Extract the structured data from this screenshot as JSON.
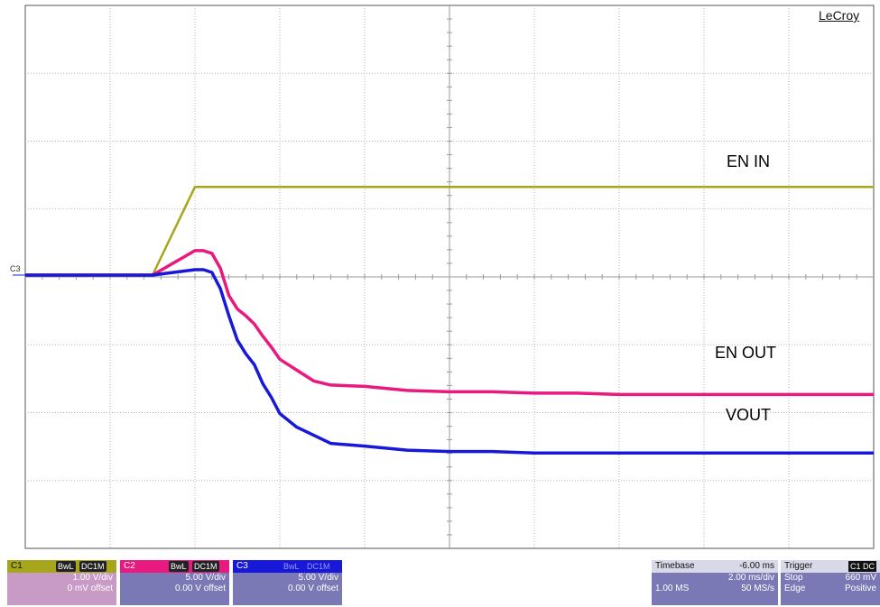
{
  "brand": "LeCroy",
  "chart_data": {
    "type": "line",
    "grid": {
      "divisions_x": 10,
      "divisions_y": 8
    },
    "x": [
      -6,
      -5,
      -4,
      -3,
      -2,
      -1.8,
      -1.6,
      -1.4,
      -1.2,
      -1.0,
      -0.8,
      -0.6,
      -0.4,
      -0.2,
      0.0,
      0.4,
      0.8,
      1.2,
      2,
      3,
      4,
      5,
      6,
      7,
      8,
      9,
      10,
      11,
      12,
      13,
      14
    ],
    "series": [
      {
        "name": "EN IN",
        "channel": "C1",
        "color": "#a6a61a",
        "values": [
          0,
          0,
          0,
          0,
          1.3,
          1.3,
          1.3,
          1.3,
          1.3,
          1.3,
          1.3,
          1.3,
          1.3,
          1.3,
          1.3,
          1.3,
          1.3,
          1.3,
          1.3,
          1.3,
          1.3,
          1.3,
          1.3,
          1.3,
          1.3,
          1.3,
          1.3,
          1.3,
          1.3,
          1.3,
          1.3
        ]
      },
      {
        "name": "EN OUT",
        "channel": "C2",
        "color": "#e8197f",
        "values": [
          0,
          0,
          0,
          0,
          1.8,
          1.8,
          1.6,
          0.5,
          -1.5,
          -2.5,
          -3.0,
          -3.6,
          -4.5,
          -5.3,
          -6.2,
          -7.0,
          -7.8,
          -8.1,
          -8.2,
          -8.5,
          -8.6,
          -8.6,
          -8.7,
          -8.7,
          -8.8,
          -8.8,
          -8.8,
          -8.8,
          -8.8,
          -8.8,
          -8.8
        ]
      },
      {
        "name": "VOUT",
        "channel": "C3",
        "color": "#1818d8",
        "values": [
          0,
          0,
          0,
          0,
          0.4,
          0.4,
          0.2,
          -1.0,
          -3.0,
          -4.8,
          -5.8,
          -6.6,
          -8.0,
          -9.0,
          -10.2,
          -11.2,
          -11.8,
          -12.4,
          -12.6,
          -12.9,
          -13.0,
          -13.0,
          -13.1,
          -13.1,
          -13.1,
          -13.1,
          -13.1,
          -13.1,
          -13.1,
          -13.1,
          -13.1
        ]
      }
    ],
    "units": {
      "x": "ms",
      "y": "V"
    },
    "zero_marker": "C3",
    "trace_labels": [
      "EN IN",
      "EN OUT",
      "VOUT"
    ]
  },
  "channels": [
    {
      "id": "C1",
      "bwl": "BwL",
      "coupling": "DC1M",
      "scale": "1.00 V/div",
      "offset": "0 mV offset",
      "color": "#a6a61a",
      "body": "#c79bc6"
    },
    {
      "id": "C2",
      "bwl": "BwL",
      "coupling": "DC1M",
      "scale": "5.00 V/div",
      "offset": "0.00 V offset",
      "color": "#e8197f",
      "body": "#7a79b6"
    },
    {
      "id": "C3",
      "bwl": "BwL",
      "coupling": "DC1M",
      "scale": "5.00 V/div",
      "offset": "0.00 V offset",
      "color": "#1818d8",
      "body": "#7a79b6"
    }
  ],
  "timebase": {
    "title": "Timebase",
    "delay": "-6.00 ms",
    "scale": "2.00 ms/div",
    "samples": "1.00 MS",
    "rate": "50 MS/s"
  },
  "trigger": {
    "title": "Trigger",
    "chan": "C1 DC",
    "level": "660 mV",
    "mode": "Stop",
    "type": "Edge",
    "slope": "Positive"
  }
}
